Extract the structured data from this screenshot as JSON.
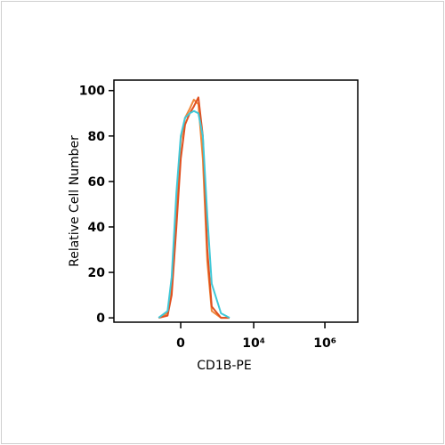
{
  "chart_data": {
    "type": "line",
    "x_label": "CD1B-PE",
    "y_label": "Relative Cell Number",
    "xscale": "asinh",
    "x": [
      -350,
      -170,
      -110,
      -50,
      0,
      50,
      110,
      170,
      250,
      350,
      480,
      650,
      1200,
      2100
    ],
    "series": [
      {
        "color": "#f0883a",
        "values": [
          0,
          2,
          15,
          50,
          78,
          88,
          92,
          96,
          94,
          70,
          25,
          3,
          0,
          0
        ]
      },
      {
        "color": "#e05020",
        "values": [
          0,
          1,
          10,
          40,
          70,
          85,
          90,
          93,
          97,
          80,
          30,
          5,
          0,
          0
        ]
      },
      {
        "color": "#40c8d8",
        "values": [
          0,
          3,
          18,
          55,
          80,
          88,
          90,
          91,
          90,
          80,
          45,
          15,
          2,
          0
        ]
      }
    ],
    "xlim": [
      -6700,
      8400000
    ],
    "xticks": [
      0,
      {
        "value": 10000,
        "label": "10⁴"
      },
      {
        "value": 1000000,
        "label": "10⁶"
      }
    ],
    "ylim": [
      -1.9,
      104.6
    ],
    "yticks": [
      0,
      20,
      40,
      60,
      80,
      100
    ]
  }
}
